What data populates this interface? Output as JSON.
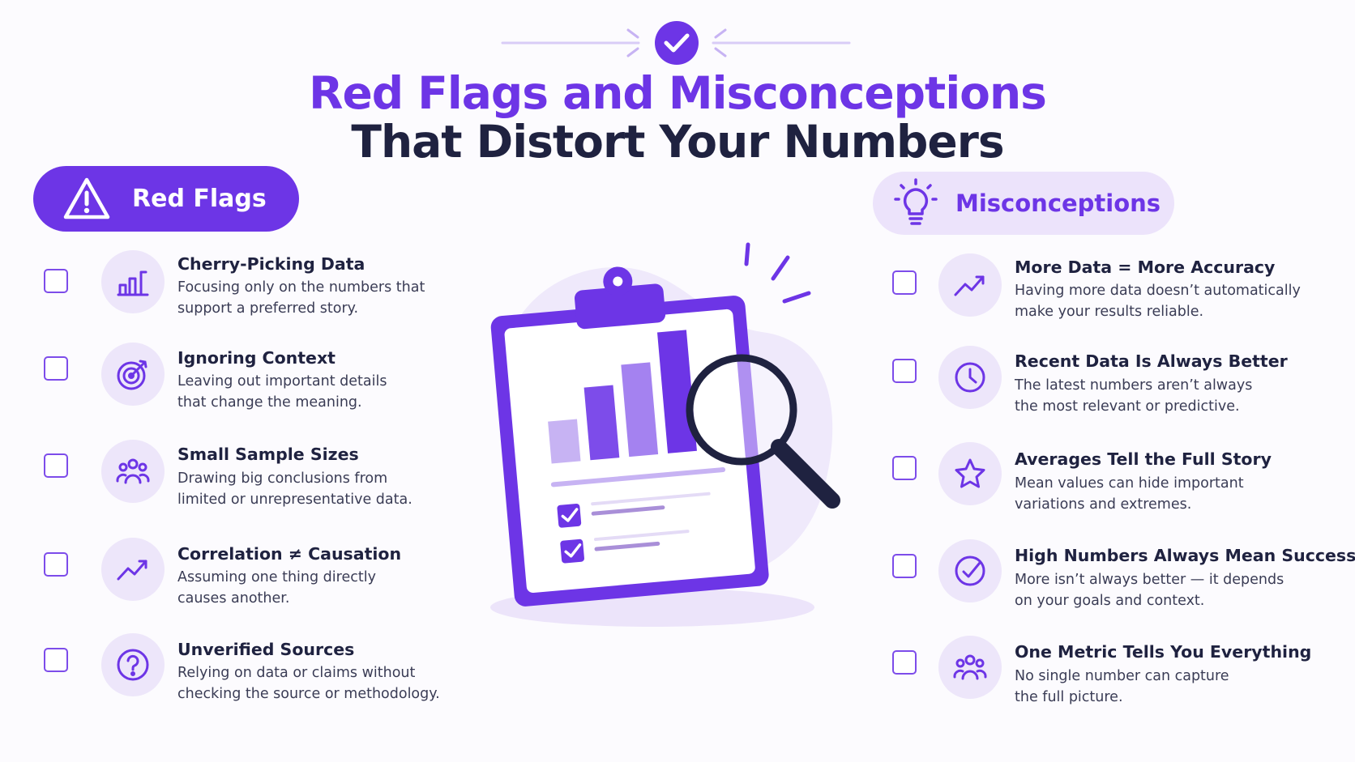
{
  "header": {
    "title_line1": "Red Flags and Misconceptions",
    "title_line2": "That Distort Your Numbers",
    "badge_icon": "check-circle-icon"
  },
  "colors": {
    "accent": "#6d35e6",
    "accent_light": "#ede6fa",
    "dark_text": "#1f2240",
    "body_text": "#3a3c55"
  },
  "red_flags": {
    "label": "Red Flags",
    "icon": "warning-triangle-icon",
    "items": [
      {
        "title": "Cherry-Picking Data",
        "desc1": "Focusing only on the numbers that",
        "desc2": "support a preferred story.",
        "icon": "bar-chart-icon"
      },
      {
        "title": "Ignoring Context",
        "desc1": "Leaving out important details",
        "desc2": "that change the meaning.",
        "icon": "target-icon"
      },
      {
        "title": "Small Sample Sizes",
        "desc1": "Drawing big conclusions from",
        "desc2": "limited or unrepresentative data.",
        "icon": "people-group-icon"
      },
      {
        "title": "Correlation ≠ Causation",
        "desc1": "Assuming one thing directly",
        "desc2": "causes another.",
        "icon": "trend-up-icon"
      },
      {
        "title": "Unverified Sources",
        "desc1": "Relying on data or claims without",
        "desc2": "checking the source or methodology.",
        "icon": "question-circle-icon"
      }
    ]
  },
  "misconceptions": {
    "label": "Misconceptions",
    "icon": "lightbulb-icon",
    "items": [
      {
        "title": "More Data = More Accuracy",
        "desc1": "Having more data doesn’t automatically",
        "desc2": "make your results reliable.",
        "icon": "trend-up-icon"
      },
      {
        "title": "Recent Data Is Always Better",
        "desc1": "The latest numbers aren’t always",
        "desc2": "the most relevant or predictive.",
        "icon": "clock-icon"
      },
      {
        "title": "Averages Tell the Full Story",
        "desc1": "Mean values can hide important",
        "desc2": "variations and extremes.",
        "icon": "star-icon"
      },
      {
        "title": "High Numbers Always Mean Success",
        "desc1": "More isn’t always better — it depends",
        "desc2": "on your goals and context.",
        "icon": "check-circle-icon"
      },
      {
        "title": "One Metric Tells You Everything",
        "desc1": "No single number can capture",
        "desc2": "the full picture.",
        "icon": "people-group-icon"
      }
    ]
  },
  "illustration": {
    "icon": "clipboard-chart-magnifier-icon"
  }
}
